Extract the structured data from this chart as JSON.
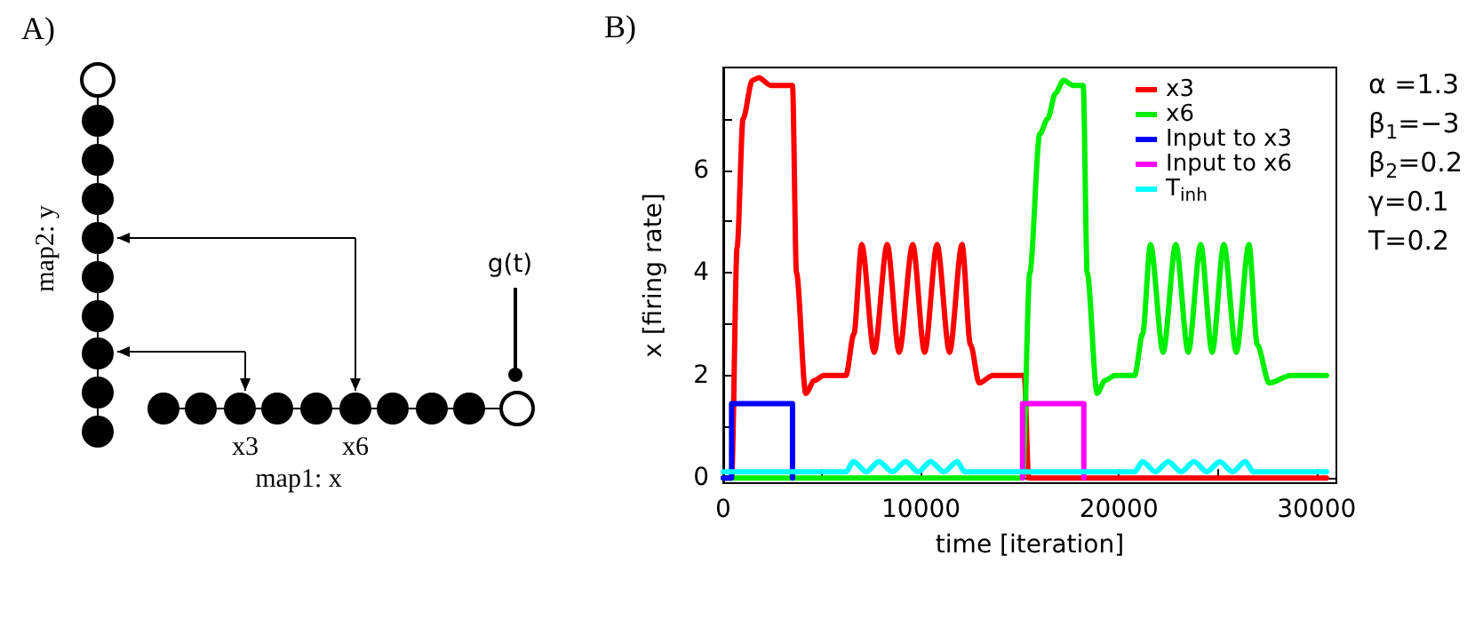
{
  "chart_data": [
    {
      "type": "other",
      "annotations": [
        "A)",
        "map2: y",
        "g(t)",
        "x3",
        "x6",
        "map1: x"
      ]
    },
    {
      "type": "line",
      "xlabel": "time [iteration]",
      "ylabel": "x [firing rate]",
      "annotations": [
        "B)",
        "α =1.3",
        "β$_{1}$=−3",
        "β$_{2}$=0.2",
        "γ=0.1",
        "T=0.2"
      ],
      "xlim": [
        0,
        31000
      ],
      "xticks": [
        0,
        {
          "value": 5000,
          "label": null
        },
        10000,
        {
          "value": 15000,
          "label": null
        },
        20000,
        {
          "value": 25000,
          "label": null
        },
        30000
      ],
      "ylim": [
        -0.1,
        8
      ],
      "yticks": [
        0,
        {
          "value": 1,
          "label": null
        },
        2,
        {
          "value": 3,
          "label": null
        },
        4,
        {
          "value": 5,
          "label": null
        },
        6,
        {
          "value": 7,
          "label": null
        }
      ],
      "legend": "top right",
      "marker": "none",
      "line_style": "solid",
      "series": [
        {
          "name": "x3",
          "color": "#ff0000",
          "x": [
            0,
            420,
            700,
            1000,
            1470,
            1800,
            2400,
            3500,
            3700,
            4170,
            4600,
            5080,
            6200,
            6600,
            7000,
            7630,
            8290,
            8890,
            9580,
            10180,
            10810,
            11440,
            12070,
            12500,
            12940,
            13630,
            15220,
            15440,
            30500
          ],
          "values": [
            0,
            0,
            4.5,
            7.0,
            7.75,
            7.8,
            7.65,
            7.65,
            4,
            1.65,
            1.9,
            2.0,
            2.0,
            2.8,
            4.55,
            2.45,
            4.55,
            2.45,
            4.55,
            2.45,
            4.55,
            2.45,
            4.55,
            2.6,
            1.85,
            2.0,
            2.0,
            0,
            0
          ]
        },
        {
          "name": "x6",
          "color": "#00ee00",
          "x": [
            0,
            15130,
            15500,
            16000,
            16400,
            16800,
            17200,
            17700,
            18200,
            18400,
            18900,
            19300,
            19800,
            20800,
            21200,
            21600,
            22240,
            22880,
            23510,
            24140,
            24720,
            25310,
            25940,
            26580,
            27000,
            27600,
            28700,
            30500
          ],
          "values": [
            0,
            0,
            4,
            6.7,
            7.0,
            7.5,
            7.75,
            7.65,
            7.65,
            4,
            1.65,
            1.9,
            2.0,
            2.0,
            2.8,
            4.55,
            2.45,
            4.55,
            2.45,
            4.55,
            2.45,
            4.55,
            2.45,
            4.55,
            2.6,
            1.85,
            2.0,
            2.0
          ]
        },
        {
          "name": "Input to x3",
          "color": "#0000ff",
          "x": [
            0,
            420,
            420,
            3500,
            3500
          ],
          "values": [
            0,
            0,
            1.45,
            1.45,
            0
          ]
        },
        {
          "name": "Input to x6",
          "color": "#ff00ff",
          "x": [
            15130,
            15130,
            18230,
            18230
          ],
          "values": [
            0,
            1.45,
            1.45,
            0
          ]
        },
        {
          "name": "T$_{inh}$",
          "color": "#00ffff",
          "x": [
            0,
            6200,
            6580,
            7230,
            7870,
            8550,
            9220,
            9850,
            10480,
            11150,
            11830,
            12200,
            20800,
            21200,
            21850,
            22500,
            23150,
            23800,
            24450,
            25100,
            25750,
            26400,
            26800,
            30500
          ],
          "values": [
            0.12,
            0.12,
            0.32,
            0.12,
            0.32,
            0.12,
            0.32,
            0.12,
            0.32,
            0.12,
            0.32,
            0.12,
            0.12,
            0.32,
            0.12,
            0.32,
            0.12,
            0.32,
            0.12,
            0.32,
            0.12,
            0.32,
            0.12,
            0.12
          ]
        }
      ]
    }
  ]
}
